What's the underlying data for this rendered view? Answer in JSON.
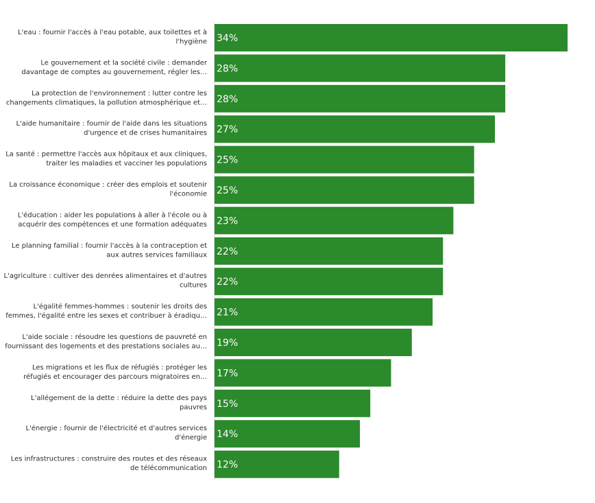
{
  "chart_data": {
    "type": "bar",
    "orientation": "horizontal",
    "title": "",
    "xlabel": "",
    "ylabel": "",
    "xlim": [
      0,
      34
    ],
    "grid": false,
    "legend": "none",
    "bar_color": "#2b8a2b",
    "value_suffix": "%",
    "categories": [
      [
        "L'eau : fournir l'accès à l'eau potable, aux toilettes et à",
        "l'hygiène"
      ],
      [
        "Le gouvernement et la société civile : demander",
        "davantage de comptes au gouvernement, régler les…"
      ],
      [
        "La protection de l'environnement : lutter contre les",
        "changements climatiques, la pollution atmosphérique et…"
      ],
      [
        "L'aide humanitaire : fournir de l'aide dans les situations",
        "d'urgence et de crises humanitaires"
      ],
      [
        "La santé : permettre l'accès aux hôpitaux et aux cliniques,",
        "traiter les maladies et vacciner les populations"
      ],
      [
        "La croissance économique : créer des emplois et soutenir",
        "l'économie"
      ],
      [
        "L'éducation : aider les populations à aller à l'école ou à",
        "acquérir des compétences et une formation adéquates"
      ],
      [
        "Le planning familial : fournir l'accès à la contraception et",
        "aux autres services familiaux"
      ],
      [
        "L'agriculture : cultiver des denrées alimentaires et d'autres",
        "cultures"
      ],
      [
        "L'égalité femmes-hommes : soutenir les droits des",
        "femmes, l'égalité entre les sexes et contribuer à éradiqu…"
      ],
      [
        "L'aide sociale : résoudre les questions de pauvreté en",
        "fournissant des logements et des prestations sociales au…"
      ],
      [
        "Les migrations et les flux de réfugiés : protéger les",
        "réfugiés et encourager des parcours migratoires en…"
      ],
      [
        "L'allégement de la dette : réduire la dette des pays",
        "pauvres"
      ],
      [
        "L'énergie : fournir de l'électricité et d'autres services",
        "d'énergie"
      ],
      [
        "Les infrastructures : construire des routes et des réseaux",
        "de télécommunication"
      ]
    ],
    "values": [
      34,
      28,
      28,
      27,
      25,
      25,
      23,
      22,
      22,
      21,
      19,
      17,
      15,
      14,
      12
    ]
  }
}
